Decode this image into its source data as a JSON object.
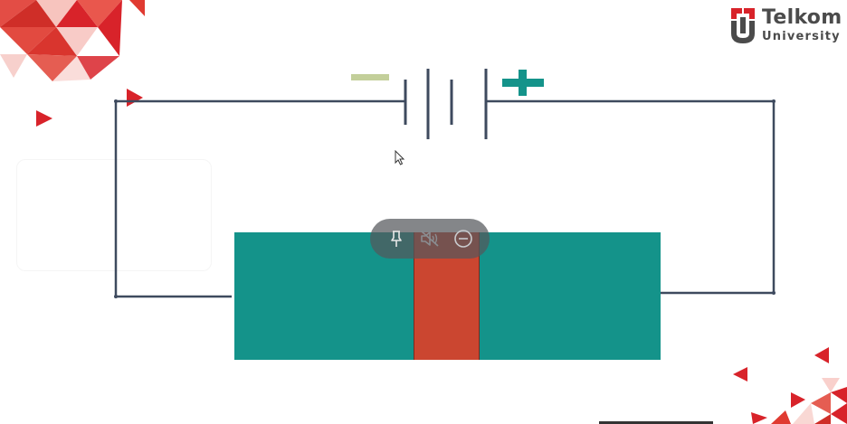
{
  "logo": {
    "title": "Telkom",
    "subtitle": "University",
    "colors": {
      "red": "#d8232a",
      "gray": "#4b4b4b"
    }
  },
  "battery": {
    "negative_symbol": "minus-sign",
    "positive_symbol": "plus-sign",
    "colors": {
      "minus": "#c3cf9a",
      "plus": "#14938a"
    }
  },
  "junction": {
    "colors": {
      "n_region": "#14938a",
      "depletion": "#cb4630"
    }
  },
  "wire_color": "#3e4a5e",
  "accent_red": "#d8232a",
  "video_controls": {
    "icons": [
      "pin-icon",
      "mute-icon",
      "minimize-icon"
    ]
  }
}
